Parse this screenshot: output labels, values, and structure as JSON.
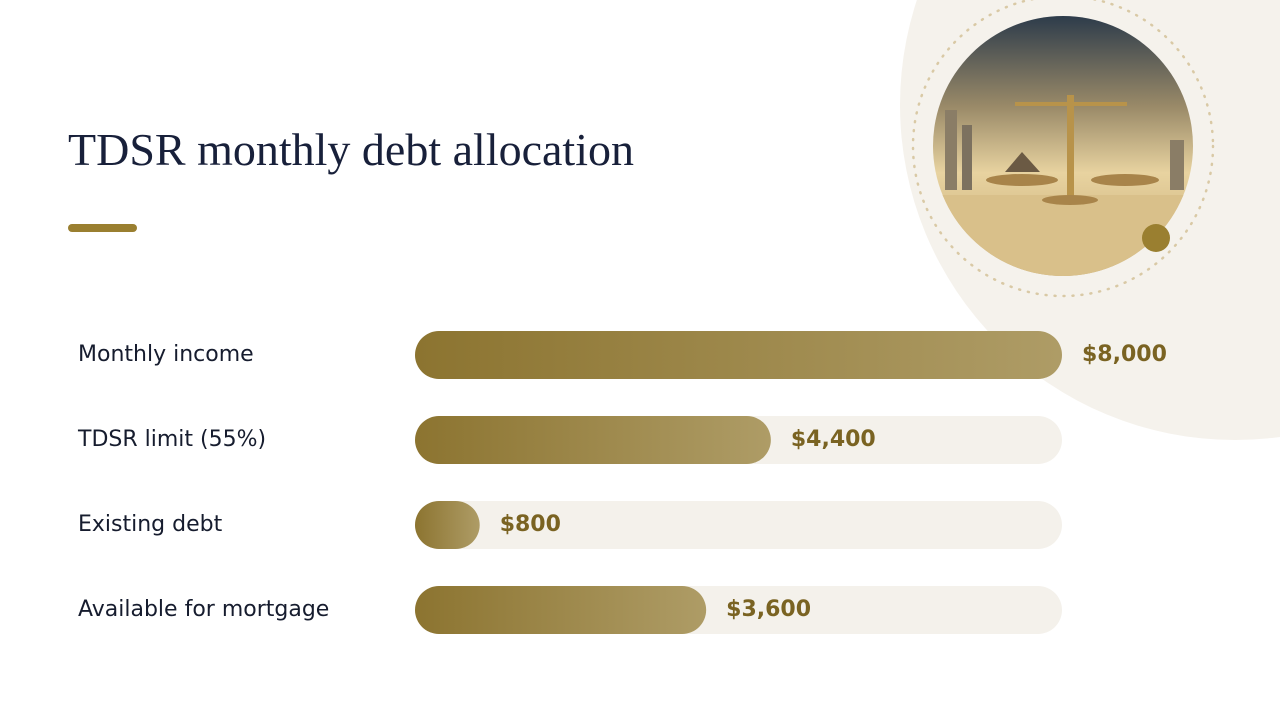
{
  "chart_data": {
    "type": "bar",
    "orientation": "horizontal",
    "title": "TDSR monthly debt allocation",
    "categories": [
      "Monthly income",
      "TDSR limit (55%)",
      "Existing debt",
      "Available for mortgage"
    ],
    "values": [
      8000,
      4400,
      800,
      3600
    ],
    "value_labels": [
      "$8,000",
      "$4,400",
      "$800",
      "$3,600"
    ],
    "color": "#8c7430"
  }
}
